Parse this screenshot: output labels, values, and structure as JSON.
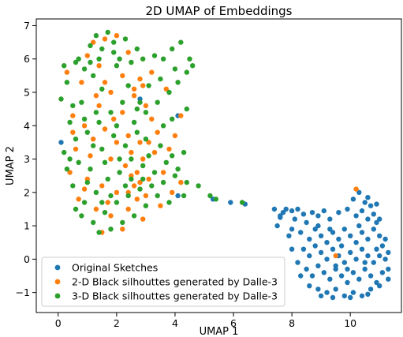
{
  "chart_data": {
    "type": "scatter",
    "title": "2D UMAP of Embeddings",
    "xlabel": "UMAP 1",
    "ylabel": "UMAP 2",
    "xlim": [
      -0.75,
      11.75
    ],
    "ylim": [
      -1.6,
      7.2
    ],
    "xticks": [
      "0",
      "2",
      "4",
      "6",
      "8",
      "10"
    ],
    "yticks": [
      "−1",
      "0",
      "1",
      "2",
      "3",
      "4",
      "5",
      "6",
      "7"
    ],
    "xtick_values": [
      0,
      2,
      4,
      6,
      8,
      10
    ],
    "ytick_values": [
      -1,
      0,
      1,
      2,
      3,
      4,
      5,
      6,
      7
    ],
    "grid": false,
    "legend_position": "lower-left",
    "series": [
      {
        "name": "Original Sketches",
        "color": "#1f77b4",
        "points": [
          [
            7.4,
            1.5
          ],
          [
            7.7,
            1.4
          ],
          [
            8.0,
            1.45
          ],
          [
            8.2,
            1.5
          ],
          [
            8.4,
            1.35
          ],
          [
            7.6,
            1.3
          ],
          [
            8.1,
            1.2
          ],
          [
            8.5,
            1.1
          ],
          [
            8.7,
            1.4
          ],
          [
            8.9,
            1.3
          ],
          [
            9.1,
            1.45
          ],
          [
            9.3,
            1.2
          ],
          [
            9.6,
            1.4
          ],
          [
            9.9,
            1.5
          ],
          [
            10.2,
            1.3
          ],
          [
            10.4,
            1.45
          ],
          [
            10.6,
            1.2
          ],
          [
            10.8,
            1.35
          ],
          [
            10.9,
            1.1
          ],
          [
            11.0,
            1.2
          ],
          [
            10.3,
            2.0
          ],
          [
            10.1,
            1.8
          ],
          [
            10.5,
            1.7
          ],
          [
            10.7,
            1.6
          ],
          [
            10.9,
            1.65
          ],
          [
            10.6,
            1.85
          ],
          [
            8.0,
            0.9
          ],
          [
            7.9,
            0.7
          ],
          [
            8.3,
            0.8
          ],
          [
            8.6,
            0.6
          ],
          [
            8.8,
            0.9
          ],
          [
            9.0,
            0.7
          ],
          [
            9.2,
            0.5
          ],
          [
            9.4,
            0.8
          ],
          [
            9.6,
            0.6
          ],
          [
            9.8,
            0.9
          ],
          [
            10.0,
            0.7
          ],
          [
            10.2,
            0.5
          ],
          [
            10.4,
            0.8
          ],
          [
            10.6,
            0.6
          ],
          [
            10.8,
            0.9
          ],
          [
            11.0,
            0.7
          ],
          [
            11.1,
            0.4
          ],
          [
            10.9,
            0.3
          ],
          [
            8.4,
            0.3
          ],
          [
            8.6,
            0.1
          ],
          [
            8.8,
            0.4
          ],
          [
            9.0,
            0.2
          ],
          [
            9.2,
            0.0
          ],
          [
            9.4,
            0.3
          ],
          [
            9.6,
            0.1
          ],
          [
            9.8,
            -0.1
          ],
          [
            10.0,
            0.2
          ],
          [
            10.2,
            0.0
          ],
          [
            10.4,
            0.3
          ],
          [
            10.6,
            0.1
          ],
          [
            10.8,
            -0.1
          ],
          [
            11.0,
            0.1
          ],
          [
            11.2,
            0.0
          ],
          [
            11.3,
            -0.3
          ],
          [
            8.5,
            -0.3
          ],
          [
            8.7,
            -0.5
          ],
          [
            8.9,
            -0.2
          ],
          [
            9.1,
            -0.4
          ],
          [
            9.3,
            -0.6
          ],
          [
            9.5,
            -0.3
          ],
          [
            9.7,
            -0.5
          ],
          [
            9.9,
            -0.7
          ],
          [
            10.1,
            -0.4
          ],
          [
            10.3,
            -0.6
          ],
          [
            10.5,
            -0.3
          ],
          [
            10.7,
            -0.5
          ],
          [
            10.9,
            -0.7
          ],
          [
            11.1,
            -0.4
          ],
          [
            11.3,
            -0.6
          ],
          [
            8.6,
            -0.8
          ],
          [
            8.9,
            -0.9
          ],
          [
            9.2,
            -1.0
          ],
          [
            9.5,
            -0.9
          ],
          [
            9.8,
            -1.1
          ],
          [
            10.1,
            -1.0
          ],
          [
            10.4,
            -1.1
          ],
          [
            10.7,
            -0.9
          ],
          [
            11.0,
            -0.8
          ],
          [
            9.0,
            -1.1
          ],
          [
            9.4,
            -1.15
          ],
          [
            10.0,
            -1.15
          ],
          [
            10.6,
            -1.05
          ],
          [
            8.3,
            -0.5
          ],
          [
            8.2,
            -0.1
          ],
          [
            9.7,
            0.4
          ],
          [
            9.3,
            0.9
          ],
          [
            10.3,
            1.0
          ],
          [
            10.5,
            -0.1
          ],
          [
            9.9,
            -0.3
          ],
          [
            8.0,
            0.3
          ],
          [
            7.5,
            1.0
          ],
          [
            7.6,
            1.25
          ],
          [
            11.2,
            0.6
          ],
          [
            11.3,
            0.2
          ],
          [
            5.3,
            1.8
          ],
          [
            5.9,
            1.7
          ],
          [
            6.4,
            1.65
          ],
          [
            4.1,
            4.3
          ],
          [
            0.1,
            3.5
          ],
          [
            2.8,
            4.8
          ],
          [
            4.1,
            1.9
          ],
          [
            7.8,
            1.5
          ],
          [
            8.9,
            1.0
          ],
          [
            9.5,
            -0.2
          ]
        ]
      },
      {
        "name": "2-D Black silhouttes generated by Dalle-3",
        "color": "#ff7f0e",
        "points": [
          [
            1.2,
            6.5
          ],
          [
            1.6,
            6.6
          ],
          [
            2.0,
            6.7
          ],
          [
            1.0,
            6.1
          ],
          [
            1.4,
            5.8
          ],
          [
            2.4,
            6.2
          ],
          [
            2.8,
            5.4
          ],
          [
            3.2,
            5.6
          ],
          [
            0.8,
            5.3
          ],
          [
            1.8,
            5.0
          ],
          [
            2.6,
            4.9
          ],
          [
            3.0,
            4.6
          ],
          [
            2.2,
            4.4
          ],
          [
            1.4,
            4.6
          ],
          [
            0.5,
            4.3
          ],
          [
            0.9,
            4.0
          ],
          [
            1.6,
            3.9
          ],
          [
            2.4,
            3.7
          ],
          [
            2.8,
            3.5
          ],
          [
            3.4,
            3.8
          ],
          [
            3.8,
            3.3
          ],
          [
            0.6,
            3.3
          ],
          [
            1.1,
            3.1
          ],
          [
            1.8,
            3.0
          ],
          [
            2.3,
            2.8
          ],
          [
            2.7,
            2.6
          ],
          [
            3.1,
            2.4
          ],
          [
            3.6,
            2.6
          ],
          [
            0.4,
            2.6
          ],
          [
            1.0,
            2.4
          ],
          [
            1.5,
            2.2
          ],
          [
            2.0,
            2.0
          ],
          [
            2.6,
            2.2
          ],
          [
            3.0,
            1.9
          ],
          [
            3.5,
            1.6
          ],
          [
            0.7,
            1.8
          ],
          [
            1.3,
            1.5
          ],
          [
            1.8,
            1.3
          ],
          [
            2.4,
            1.5
          ],
          [
            2.9,
            1.2
          ],
          [
            1.5,
            0.8
          ],
          [
            2.2,
            0.9
          ],
          [
            2.5,
            3.2
          ],
          [
            2.9,
            3.0
          ],
          [
            3.3,
            3.2
          ],
          [
            1.2,
            3.6
          ],
          [
            0.3,
            5.6
          ],
          [
            4.2,
            4.3
          ],
          [
            4.0,
            3.7
          ],
          [
            3.7,
            5.1
          ],
          [
            2.6,
            5.1
          ],
          [
            2.9,
            5.2
          ],
          [
            2.2,
            5.5
          ],
          [
            1.6,
            5.3
          ],
          [
            2.5,
            2.5
          ],
          [
            2.8,
            2.3
          ],
          [
            2.4,
            2.0
          ],
          [
            2.7,
            1.8
          ],
          [
            3.2,
            4.2
          ],
          [
            1.9,
            4.2
          ],
          [
            10.2,
            2.1
          ],
          [
            9.5,
            0.1
          ],
          [
            0.9,
            2.1
          ],
          [
            1.7,
            1.7
          ],
          [
            3.9,
            2.0
          ],
          [
            4.2,
            2.3
          ],
          [
            3.1,
            3.5
          ],
          [
            2.0,
            3.5
          ],
          [
            1.3,
            4.9
          ],
          [
            0.5,
            3.8
          ]
        ]
      },
      {
        "name": "3-D Black silhouttes generated by Dalle-3",
        "color": "#2ca02c",
        "points": [
          [
            1.3,
            6.7
          ],
          [
            1.7,
            6.8
          ],
          [
            1.1,
            6.4
          ],
          [
            1.5,
            6.3
          ],
          [
            1.9,
            6.5
          ],
          [
            2.3,
            6.6
          ],
          [
            0.2,
            5.8
          ],
          [
            0.6,
            5.9
          ],
          [
            0.3,
            5.3
          ],
          [
            0.1,
            4.8
          ],
          [
            0.4,
            4.1
          ],
          [
            0.8,
            4.7
          ],
          [
            1.2,
            5.5
          ],
          [
            1.5,
            5.1
          ],
          [
            2.0,
            5.8
          ],
          [
            2.5,
            5.9
          ],
          [
            2.9,
            6.0
          ],
          [
            3.3,
            6.1
          ],
          [
            3.6,
            6.0
          ],
          [
            3.9,
            6.3
          ],
          [
            4.2,
            6.5
          ],
          [
            4.5,
            6.0
          ],
          [
            4.4,
            5.6
          ],
          [
            4.1,
            5.3
          ],
          [
            3.8,
            5.0
          ],
          [
            3.4,
            4.7
          ],
          [
            3.0,
            4.4
          ],
          [
            2.6,
            4.1
          ],
          [
            2.2,
            4.7
          ],
          [
            1.8,
            4.4
          ],
          [
            1.4,
            4.1
          ],
          [
            1.0,
            3.8
          ],
          [
            0.6,
            3.6
          ],
          [
            0.2,
            3.2
          ],
          [
            0.3,
            2.7
          ],
          [
            0.7,
            2.9
          ],
          [
            1.1,
            2.7
          ],
          [
            1.5,
            3.3
          ],
          [
            1.9,
            3.7
          ],
          [
            2.3,
            3.4
          ],
          [
            2.7,
            3.8
          ],
          [
            3.1,
            3.1
          ],
          [
            3.5,
            3.4
          ],
          [
            3.9,
            3.1
          ],
          [
            4.3,
            3.2
          ],
          [
            4.1,
            2.7
          ],
          [
            3.7,
            2.9
          ],
          [
            3.3,
            2.6
          ],
          [
            2.9,
            2.8
          ],
          [
            2.5,
            2.4
          ],
          [
            2.1,
            2.6
          ],
          [
            1.7,
            2.4
          ],
          [
            1.3,
            2.0
          ],
          [
            0.9,
            1.7
          ],
          [
            0.5,
            2.2
          ],
          [
            0.8,
            1.3
          ],
          [
            1.2,
            1.1
          ],
          [
            1.6,
            1.4
          ],
          [
            2.0,
            1.7
          ],
          [
            2.4,
            1.9
          ],
          [
            2.8,
            2.1
          ],
          [
            3.2,
            2.2
          ],
          [
            3.6,
            2.3
          ],
          [
            4.0,
            2.5
          ],
          [
            4.4,
            2.3
          ],
          [
            4.8,
            2.2
          ],
          [
            5.2,
            1.9
          ],
          [
            3.4,
            1.9
          ],
          [
            3.0,
            1.6
          ],
          [
            2.6,
            1.3
          ],
          [
            2.2,
            1.1
          ],
          [
            1.8,
            0.9
          ],
          [
            1.4,
            0.8
          ],
          [
            1.8,
            1.9
          ],
          [
            2.1,
            3.0
          ],
          [
            1.6,
            2.9
          ],
          [
            2.7,
            4.5
          ],
          [
            2.4,
            5.2
          ],
          [
            1.1,
            5.9
          ],
          [
            0.7,
            6.0
          ],
          [
            2.1,
            6.0
          ],
          [
            2.7,
            6.3
          ],
          [
            3.5,
            5.4
          ],
          [
            3.1,
            5.2
          ],
          [
            2.8,
            4.7
          ],
          [
            1.3,
            4.4
          ],
          [
            0.9,
            4.2
          ],
          [
            0.5,
            4.6
          ],
          [
            4.4,
            4.5
          ],
          [
            3.9,
            4.2
          ],
          [
            4.3,
            1.9
          ],
          [
            3.8,
            1.7
          ],
          [
            6.3,
            1.7
          ],
          [
            5.4,
            1.8
          ],
          [
            2.5,
            3.0
          ],
          [
            1.2,
            3.4
          ],
          [
            0.4,
            3.0
          ],
          [
            2.0,
            4.0
          ],
          [
            3.0,
            3.6
          ],
          [
            3.6,
            4.0
          ],
          [
            1.5,
            1.7
          ],
          [
            1.0,
            2.3
          ],
          [
            0.6,
            1.5
          ],
          [
            2.3,
            2.2
          ],
          [
            2.9,
            2.4
          ],
          [
            1.9,
            6.2
          ],
          [
            1.4,
            6.0
          ],
          [
            0.9,
            5.7
          ],
          [
            4.0,
            5.7
          ],
          [
            4.6,
            5.8
          ]
        ]
      }
    ]
  }
}
